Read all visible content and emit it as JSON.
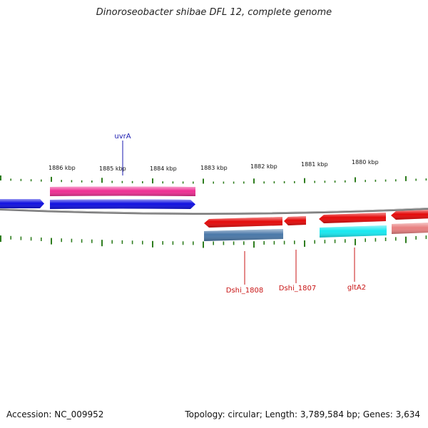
{
  "title": "Dinoroseobacter shibae DFL 12, complete genome",
  "footer": {
    "accession": "Accession: NC_009952",
    "summary": "Topology: circular; Length: 3,789,584 bp; Genes: 3,634"
  },
  "colors": {
    "backbone": "#7a7a7a",
    "tick": "#2e7d1e",
    "forward_label": "#1a1ab0",
    "reverse_label": "#c81414"
  },
  "ruler": [
    {
      "label": "1886 kbp"
    },
    {
      "label": "1885 kbp"
    },
    {
      "label": "1884 kbp"
    },
    {
      "label": "1883 kbp"
    },
    {
      "label": "1882 kbp"
    },
    {
      "label": "1881 kbp"
    },
    {
      "label": "1880 kbp"
    }
  ],
  "features": [
    {
      "id": "f1",
      "strand": "forward",
      "color": "#1010e0",
      "row": "outer"
    },
    {
      "id": "f2",
      "strand": "forward",
      "color": "#ee2f93",
      "row": "outer-top"
    },
    {
      "id": "f3",
      "strand": "forward",
      "color": "#1010e0",
      "row": "outer"
    },
    {
      "id": "f4",
      "strand": "reverse",
      "color": "#e40a0a",
      "row": "inner"
    },
    {
      "id": "f5",
      "strand": "reverse",
      "color": "#4a78a8",
      "row": "inner-bottom"
    },
    {
      "id": "f6",
      "strand": "reverse",
      "color": "#e40a0a",
      "row": "inner"
    },
    {
      "id": "f7",
      "strand": "reverse",
      "color": "#e40a0a",
      "row": "inner"
    },
    {
      "id": "f8",
      "strand": "reverse",
      "color": "#18e8f0",
      "row": "inner-bottom"
    },
    {
      "id": "f9",
      "strand": "reverse",
      "color": "#e40a0a",
      "row": "inner"
    },
    {
      "id": "f10",
      "strand": "reverse",
      "color": "#e88080",
      "row": "inner-bottom"
    }
  ],
  "gene_labels": [
    {
      "text": "uvrA",
      "strand": "forward"
    },
    {
      "text": "Dshi_1808",
      "strand": "reverse"
    },
    {
      "text": "Dshi_1807",
      "strand": "reverse"
    },
    {
      "text": "gltA2",
      "strand": "reverse"
    }
  ]
}
